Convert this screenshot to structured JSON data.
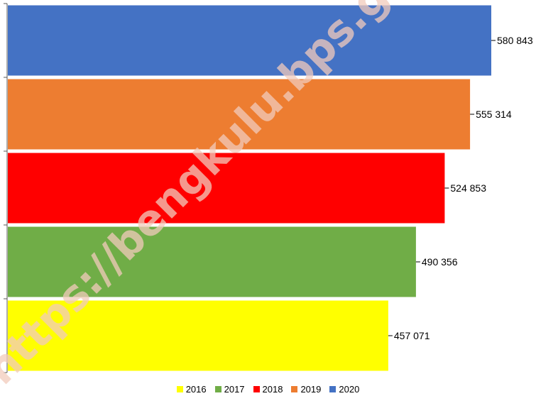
{
  "watermark": "https://bengkulu.bps.go.id",
  "chart_data": {
    "type": "bar",
    "orientation": "horizontal",
    "categories": [
      "2016",
      "2017",
      "2018",
      "2019",
      "2020"
    ],
    "values": [
      457071,
      490356,
      524853,
      555314,
      580843
    ],
    "value_labels": [
      "457 071",
      "490 356",
      "524 853",
      "555 314",
      "580 843"
    ],
    "colors": [
      "#ffff00",
      "#70ad47",
      "#ff0000",
      "#ed7d31",
      "#4472c4"
    ],
    "xlim": [
      0,
      600000
    ],
    "axis_labels_shown": false,
    "grid": false,
    "legend_position": "bottom",
    "title": "",
    "xlabel": "",
    "ylabel": ""
  },
  "legend": [
    {
      "label": "2016",
      "color": "#ffff00"
    },
    {
      "label": "2017",
      "color": "#70ad47"
    },
    {
      "label": "2018",
      "color": "#ff0000"
    },
    {
      "label": "2019",
      "color": "#ed7d31"
    },
    {
      "label": "2020",
      "color": "#4472c4"
    }
  ]
}
